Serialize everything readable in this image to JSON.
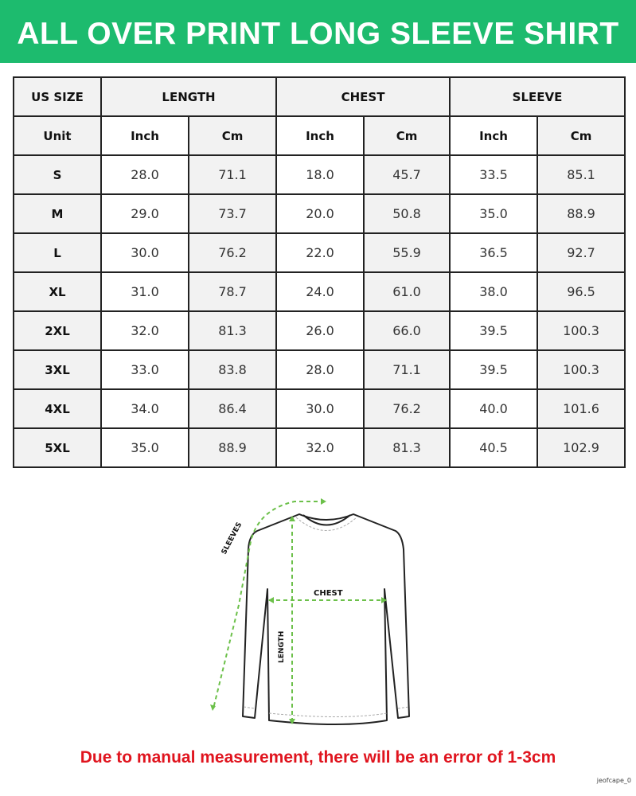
{
  "title": "ALL OVER PRINT LONG SLEEVE SHIRT",
  "table": {
    "group_headers": [
      "US SIZE",
      "LENGTH",
      "CHEST",
      "SLEEVE"
    ],
    "unit_row": [
      "Unit",
      "Inch",
      "Cm",
      "Inch",
      "Cm",
      "Inch",
      "Cm"
    ],
    "rows": [
      [
        "S",
        "28.0",
        "71.1",
        "18.0",
        "45.7",
        "33.5",
        "85.1"
      ],
      [
        "M",
        "29.0",
        "73.7",
        "20.0",
        "50.8",
        "35.0",
        "88.9"
      ],
      [
        "L",
        "30.0",
        "76.2",
        "22.0",
        "55.9",
        "36.5",
        "92.7"
      ],
      [
        "XL",
        "31.0",
        "78.7",
        "24.0",
        "61.0",
        "38.0",
        "96.5"
      ],
      [
        "2XL",
        "32.0",
        "81.3",
        "26.0",
        "66.0",
        "39.5",
        "100.3"
      ],
      [
        "3XL",
        "33.0",
        "83.8",
        "28.0",
        "71.1",
        "39.5",
        "100.3"
      ],
      [
        "4XL",
        "34.0",
        "86.4",
        "30.0",
        "76.2",
        "40.0",
        "101.6"
      ],
      [
        "5XL",
        "35.0",
        "88.9",
        "32.0",
        "81.3",
        "40.5",
        "102.9"
      ]
    ]
  },
  "diagram": {
    "labels": {
      "sleeves": "SLEEVES",
      "chest": "CHEST",
      "length": "LENGTH"
    }
  },
  "note": "Due to manual measurement, there will be an error of 1-3cm",
  "watermark": "jeofcape_0",
  "colors": {
    "banner": "#1dbb6e",
    "measure_lines": "#6cc04a",
    "note": "#e0141e"
  }
}
